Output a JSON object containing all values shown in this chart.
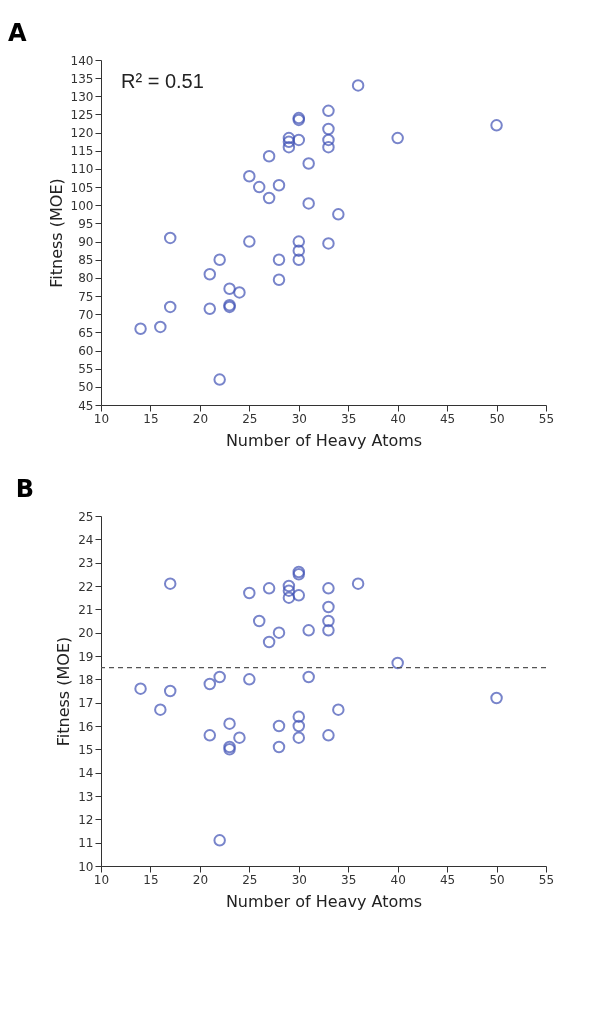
{
  "chart_data": [
    {
      "type": "scatter",
      "title": "A",
      "xlabel": "Number of Heavy Atoms",
      "ylabel": "Fitness (MOE)",
      "marker": "circle",
      "color": "#3f51b5",
      "x": [
        14,
        16,
        17,
        17,
        21,
        21,
        22,
        22,
        23,
        23,
        23,
        24,
        25,
        25,
        26,
        27,
        27,
        28,
        28,
        28,
        29,
        29,
        29,
        30,
        30,
        30,
        30,
        30,
        30,
        31,
        31,
        33,
        33,
        33,
        33,
        33,
        34,
        36,
        40,
        50
      ],
      "values": [
        66,
        66.5,
        72,
        91,
        81,
        71.5,
        85,
        52,
        77,
        72.5,
        72,
        76,
        108,
        90,
        105,
        102,
        113.5,
        105.5,
        85,
        79.5,
        118.5,
        117.5,
        116,
        124,
        123.5,
        118,
        90,
        87.5,
        85,
        111.5,
        100.5,
        126,
        121,
        118,
        116,
        89.5,
        97.5,
        133,
        118.5,
        122
      ],
      "xlim": [
        10,
        55
      ],
      "ylim": [
        45,
        140
      ],
      "xticks": [
        10,
        15,
        20,
        25,
        30,
        35,
        40,
        45,
        50,
        55
      ],
      "yticks": [
        45,
        50,
        55,
        60,
        65,
        70,
        75,
        80,
        85,
        90,
        95,
        100,
        105,
        110,
        115,
        120,
        125,
        130,
        135,
        140
      ],
      "annotations": [
        "R² = 0.51"
      ]
    },
    {
      "type": "scatter",
      "title": "B",
      "xlabel": "Number of Heavy Atoms",
      "ylabel": "Fitness (MOE)",
      "marker": "circle",
      "color": "#3f51b5",
      "x": [
        14,
        16,
        17,
        17,
        21,
        21,
        22,
        22,
        23,
        23,
        23,
        24,
        25,
        25,
        26,
        27,
        27,
        28,
        28,
        28,
        29,
        29,
        29,
        30,
        30,
        30,
        30,
        30,
        30,
        31,
        31,
        33,
        33,
        33,
        33,
        33,
        34,
        36,
        40,
        50
      ],
      "values": [
        17.6,
        16.7,
        22.1,
        17.5,
        17.8,
        15.6,
        18.1,
        11.1,
        16.1,
        15.1,
        15.0,
        15.5,
        21.7,
        18.0,
        20.5,
        21.9,
        19.6,
        20.0,
        16.0,
        15.1,
        22.0,
        21.8,
        21.5,
        22.6,
        22.5,
        21.6,
        16.4,
        16.0,
        15.5,
        20.1,
        18.1,
        21.9,
        21.1,
        20.5,
        20.1,
        15.6,
        16.7,
        22.1,
        18.7,
        17.2
      ],
      "xlim": [
        10,
        55
      ],
      "ylim": [
        10,
        25
      ],
      "xticks": [
        10,
        15,
        20,
        25,
        30,
        35,
        40,
        45,
        50,
        55
      ],
      "yticks": [
        10,
        11,
        12,
        13,
        14,
        15,
        16,
        17,
        18,
        19,
        20,
        21,
        22,
        23,
        24,
        25
      ],
      "ref_lines": [
        {
          "axis": "y",
          "value": 18.5,
          "color": "#555555",
          "line_style": "dashed"
        }
      ]
    }
  ]
}
